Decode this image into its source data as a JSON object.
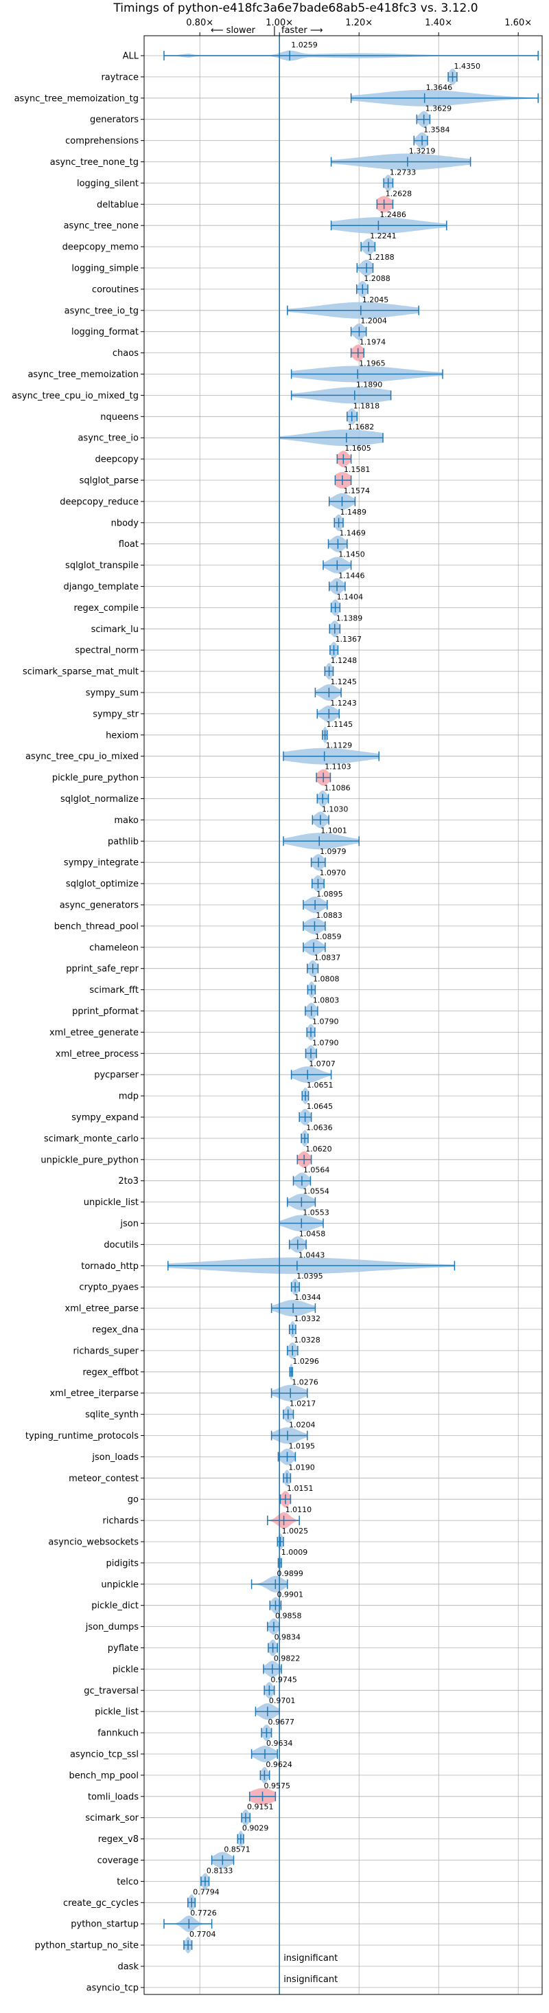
{
  "colors": {
    "line": "#1f77b4",
    "violin_fill": "#a6c8e6",
    "violin_edge": "#1f77b4",
    "significant_fill": "#f4a6ad",
    "grid": "#b0b0b0",
    "background": "#ffffff"
  },
  "chart_data": {
    "type": "violin",
    "orientation": "horizontal",
    "title": "Timings of python-e418fc3a6e7bade68ab5-e418fc3 vs. 3.12.0",
    "direction_label_left": "⟵ slower",
    "direction_separator": "|",
    "direction_label_right": "faster ⟶",
    "xlim": [
      0.66,
      1.66
    ],
    "xticks": [
      0.8,
      1.0,
      1.2,
      1.4,
      1.6
    ],
    "xtick_labels": [
      "0.80×",
      "1.00×",
      "1.20×",
      "1.40×",
      "1.60×"
    ],
    "reference_line": 1.0,
    "grid": true,
    "insignificant_label": "insignificant",
    "benchmarks": [
      {
        "name": "ALL",
        "value": 1.0259,
        "value_label": "1.0259",
        "min": 0.71,
        "max": 1.65,
        "spread": 0.02,
        "kind": "all"
      },
      {
        "name": "raytrace",
        "value": 1.435,
        "value_label": "1.4350",
        "min": 1.424,
        "max": 1.446,
        "spread": 0.009,
        "kind": "normal"
      },
      {
        "name": "async_tree_memoization_tg",
        "value": 1.3646,
        "value_label": "1.3646",
        "min": 1.18,
        "max": 1.65,
        "spread": 0.12,
        "kind": "normal"
      },
      {
        "name": "generators",
        "value": 1.3629,
        "value_label": "1.3629",
        "min": 1.345,
        "max": 1.378,
        "spread": 0.012,
        "kind": "normal"
      },
      {
        "name": "comprehensions",
        "value": 1.3584,
        "value_label": "1.3584",
        "min": 1.338,
        "max": 1.372,
        "spread": 0.012,
        "kind": "normal"
      },
      {
        "name": "async_tree_none_tg",
        "value": 1.3219,
        "value_label": "1.3219",
        "min": 1.13,
        "max": 1.48,
        "spread": 0.11,
        "kind": "normal"
      },
      {
        "name": "logging_silent",
        "value": 1.2733,
        "value_label": "1.2733",
        "min": 1.262,
        "max": 1.285,
        "spread": 0.009,
        "kind": "normal"
      },
      {
        "name": "deltablue",
        "value": 1.2628,
        "value_label": "1.2628",
        "min": 1.245,
        "max": 1.285,
        "spread": 0.018,
        "kind": "significant"
      },
      {
        "name": "async_tree_none",
        "value": 1.2486,
        "value_label": "1.2486",
        "min": 1.13,
        "max": 1.42,
        "spread": 0.1,
        "kind": "normal"
      },
      {
        "name": "deepcopy_memo",
        "value": 1.2241,
        "value_label": "1.2241",
        "min": 1.205,
        "max": 1.24,
        "spread": 0.013,
        "kind": "normal"
      },
      {
        "name": "logging_simple",
        "value": 1.2188,
        "value_label": "1.2188",
        "min": 1.195,
        "max": 1.235,
        "spread": 0.014,
        "kind": "normal"
      },
      {
        "name": "coroutines",
        "value": 1.2088,
        "value_label": "1.2088",
        "min": 1.194,
        "max": 1.222,
        "spread": 0.01,
        "kind": "normal"
      },
      {
        "name": "async_tree_io_tg",
        "value": 1.2045,
        "value_label": "1.2045",
        "min": 1.02,
        "max": 1.35,
        "spread": 0.1,
        "kind": "normal"
      },
      {
        "name": "logging_format",
        "value": 1.2004,
        "value_label": "1.2004",
        "min": 1.18,
        "max": 1.218,
        "spread": 0.013,
        "kind": "normal"
      },
      {
        "name": "chaos",
        "value": 1.1974,
        "value_label": "1.1974",
        "min": 1.18,
        "max": 1.212,
        "spread": 0.013,
        "kind": "significant"
      },
      {
        "name": "async_tree_memoization",
        "value": 1.1965,
        "value_label": "1.1965",
        "min": 1.03,
        "max": 1.41,
        "spread": 0.12,
        "kind": "normal"
      },
      {
        "name": "async_tree_cpu_io_mixed_tg",
        "value": 1.189,
        "value_label": "1.1890",
        "min": 1.03,
        "max": 1.28,
        "spread": 0.09,
        "kind": "normal"
      },
      {
        "name": "nqueens",
        "value": 1.1818,
        "value_label": "1.1818",
        "min": 1.17,
        "max": 1.195,
        "spread": 0.01,
        "kind": "normal"
      },
      {
        "name": "async_tree_io",
        "value": 1.1682,
        "value_label": "1.1682",
        "min": 1.0,
        "max": 1.26,
        "spread": 0.09,
        "kind": "normal"
      },
      {
        "name": "deepcopy",
        "value": 1.1605,
        "value_label": "1.1605",
        "min": 1.145,
        "max": 1.18,
        "spread": 0.013,
        "kind": "significant"
      },
      {
        "name": "sqlglot_parse",
        "value": 1.1581,
        "value_label": "1.1581",
        "min": 1.14,
        "max": 1.18,
        "spread": 0.02,
        "kind": "significant"
      },
      {
        "name": "deepcopy_reduce",
        "value": 1.1574,
        "value_label": "1.1574",
        "min": 1.125,
        "max": 1.19,
        "spread": 0.022,
        "kind": "normal"
      },
      {
        "name": "nbody",
        "value": 1.1489,
        "value_label": "1.1489",
        "min": 1.138,
        "max": 1.16,
        "spread": 0.009,
        "kind": "normal"
      },
      {
        "name": "float",
        "value": 1.1469,
        "value_label": "1.1469",
        "min": 1.123,
        "max": 1.17,
        "spread": 0.016,
        "kind": "normal"
      },
      {
        "name": "sqlglot_transpile",
        "value": 1.145,
        "value_label": "1.1450",
        "min": 1.11,
        "max": 1.18,
        "spread": 0.022,
        "kind": "normal"
      },
      {
        "name": "django_template",
        "value": 1.1446,
        "value_label": "1.1446",
        "min": 1.125,
        "max": 1.165,
        "spread": 0.014,
        "kind": "normal"
      },
      {
        "name": "regex_compile",
        "value": 1.1404,
        "value_label": "1.1404",
        "min": 1.13,
        "max": 1.152,
        "spread": 0.009,
        "kind": "normal"
      },
      {
        "name": "scimark_lu",
        "value": 1.1389,
        "value_label": "1.1389",
        "min": 1.126,
        "max": 1.152,
        "spread": 0.01,
        "kind": "normal"
      },
      {
        "name": "spectral_norm",
        "value": 1.1367,
        "value_label": "1.1367",
        "min": 1.127,
        "max": 1.147,
        "spread": 0.008,
        "kind": "normal"
      },
      {
        "name": "scimark_sparse_mat_mult",
        "value": 1.1248,
        "value_label": "1.1248",
        "min": 1.114,
        "max": 1.135,
        "spread": 0.008,
        "kind": "normal"
      },
      {
        "name": "sympy_sum",
        "value": 1.1245,
        "value_label": "1.1245",
        "min": 1.09,
        "max": 1.155,
        "spread": 0.02,
        "kind": "normal"
      },
      {
        "name": "sympy_str",
        "value": 1.1243,
        "value_label": "1.1243",
        "min": 1.095,
        "max": 1.15,
        "spread": 0.018,
        "kind": "normal"
      },
      {
        "name": "hexiom",
        "value": 1.1145,
        "value_label": "1.1145",
        "min": 1.108,
        "max": 1.12,
        "spread": 0.005,
        "kind": "normal"
      },
      {
        "name": "async_tree_cpu_io_mixed",
        "value": 1.1129,
        "value_label": "1.1129",
        "min": 1.01,
        "max": 1.25,
        "spread": 0.09,
        "kind": "normal"
      },
      {
        "name": "pickle_pure_python",
        "value": 1.1103,
        "value_label": "1.1103",
        "min": 1.093,
        "max": 1.128,
        "spread": 0.014,
        "kind": "significant"
      },
      {
        "name": "sqlglot_normalize",
        "value": 1.1086,
        "value_label": "1.1086",
        "min": 1.095,
        "max": 1.123,
        "spread": 0.01,
        "kind": "normal"
      },
      {
        "name": "mako",
        "value": 1.103,
        "value_label": "1.1030",
        "min": 1.083,
        "max": 1.124,
        "spread": 0.014,
        "kind": "normal"
      },
      {
        "name": "pathlib",
        "value": 1.1001,
        "value_label": "1.1001",
        "min": 1.01,
        "max": 1.2,
        "spread": 0.06,
        "kind": "normal"
      },
      {
        "name": "sympy_integrate",
        "value": 1.0979,
        "value_label": "1.0979",
        "min": 1.08,
        "max": 1.115,
        "spread": 0.013,
        "kind": "normal"
      },
      {
        "name": "sqlglot_optimize",
        "value": 1.097,
        "value_label": "1.0970",
        "min": 1.082,
        "max": 1.112,
        "spread": 0.011,
        "kind": "normal"
      },
      {
        "name": "async_generators",
        "value": 1.0895,
        "value_label": "1.0895",
        "min": 1.06,
        "max": 1.12,
        "spread": 0.02,
        "kind": "normal"
      },
      {
        "name": "bench_thread_pool",
        "value": 1.0883,
        "value_label": "1.0883",
        "min": 1.06,
        "max": 1.115,
        "spread": 0.02,
        "kind": "normal"
      },
      {
        "name": "chameleon",
        "value": 1.0859,
        "value_label": "1.0859",
        "min": 1.06,
        "max": 1.115,
        "spread": 0.018,
        "kind": "normal"
      },
      {
        "name": "pprint_safe_repr",
        "value": 1.0837,
        "value_label": "1.0837",
        "min": 1.07,
        "max": 1.097,
        "spread": 0.01,
        "kind": "normal"
      },
      {
        "name": "scimark_fft",
        "value": 1.0808,
        "value_label": "1.0808",
        "min": 1.071,
        "max": 1.09,
        "spread": 0.007,
        "kind": "normal"
      },
      {
        "name": "pprint_pformat",
        "value": 1.0803,
        "value_label": "1.0803",
        "min": 1.065,
        "max": 1.096,
        "spread": 0.011,
        "kind": "normal"
      },
      {
        "name": "xml_etree_generate",
        "value": 1.079,
        "value_label": "1.0790",
        "min": 1.069,
        "max": 1.089,
        "spread": 0.008,
        "kind": "normal"
      },
      {
        "name": "xml_etree_process",
        "value": 1.079,
        "value_label": "1.0790",
        "min": 1.066,
        "max": 1.093,
        "spread": 0.01,
        "kind": "normal"
      },
      {
        "name": "pycparser",
        "value": 1.0707,
        "value_label": "1.0707",
        "min": 1.03,
        "max": 1.13,
        "spread": 0.03,
        "kind": "normal"
      },
      {
        "name": "mdp",
        "value": 1.0651,
        "value_label": "1.0651",
        "min": 1.057,
        "max": 1.073,
        "spread": 0.007,
        "kind": "normal"
      },
      {
        "name": "sympy_expand",
        "value": 1.0645,
        "value_label": "1.0645",
        "min": 1.05,
        "max": 1.08,
        "spread": 0.011,
        "kind": "normal"
      },
      {
        "name": "scimark_monte_carlo",
        "value": 1.0636,
        "value_label": "1.0636",
        "min": 1.055,
        "max": 1.072,
        "spread": 0.007,
        "kind": "normal"
      },
      {
        "name": "unpickle_pure_python",
        "value": 1.062,
        "value_label": "1.0620",
        "min": 1.045,
        "max": 1.08,
        "spread": 0.013,
        "kind": "significant"
      },
      {
        "name": "2to3",
        "value": 1.0564,
        "value_label": "1.0564",
        "min": 1.035,
        "max": 1.078,
        "spread": 0.015,
        "kind": "normal"
      },
      {
        "name": "unpickle_list",
        "value": 1.0554,
        "value_label": "1.0554",
        "min": 1.02,
        "max": 1.09,
        "spread": 0.024,
        "kind": "normal"
      },
      {
        "name": "json",
        "value": 1.0553,
        "value_label": "1.0553",
        "min": 1.0,
        "max": 1.11,
        "spread": 0.035,
        "kind": "normal"
      },
      {
        "name": "docutils",
        "value": 1.0458,
        "value_label": "1.0458",
        "min": 1.025,
        "max": 1.067,
        "spread": 0.015,
        "kind": "normal"
      },
      {
        "name": "tornado_http",
        "value": 1.0443,
        "value_label": "1.0443",
        "min": 0.72,
        "max": 1.44,
        "spread": 0.2,
        "kind": "normal"
      },
      {
        "name": "crypto_pyaes",
        "value": 1.0395,
        "value_label": "1.0395",
        "min": 1.03,
        "max": 1.05,
        "spread": 0.008,
        "kind": "normal"
      },
      {
        "name": "xml_etree_parse",
        "value": 1.0344,
        "value_label": "1.0344",
        "min": 0.98,
        "max": 1.09,
        "spread": 0.035,
        "kind": "normal"
      },
      {
        "name": "regex_dna",
        "value": 1.0332,
        "value_label": "1.0332",
        "min": 1.025,
        "max": 1.041,
        "spread": 0.006,
        "kind": "normal"
      },
      {
        "name": "richards_super",
        "value": 1.0328,
        "value_label": "1.0328",
        "min": 1.02,
        "max": 1.046,
        "spread": 0.01,
        "kind": "normal"
      },
      {
        "name": "regex_effbot",
        "value": 1.0296,
        "value_label": "1.0296",
        "min": 1.026,
        "max": 1.033,
        "spread": 0.004,
        "kind": "normal"
      },
      {
        "name": "xml_etree_iterparse",
        "value": 1.0276,
        "value_label": "1.0276",
        "min": 0.98,
        "max": 1.07,
        "spread": 0.03,
        "kind": "normal"
      },
      {
        "name": "sqlite_synth",
        "value": 1.0217,
        "value_label": "1.0217",
        "min": 1.01,
        "max": 1.035,
        "spread": 0.009,
        "kind": "normal"
      },
      {
        "name": "typing_runtime_protocols",
        "value": 1.0204,
        "value_label": "1.0204",
        "min": 0.98,
        "max": 1.07,
        "spread": 0.028,
        "kind": "normal"
      },
      {
        "name": "json_loads",
        "value": 1.0195,
        "value_label": "1.0195",
        "min": 0.997,
        "max": 1.04,
        "spread": 0.015,
        "kind": "normal"
      },
      {
        "name": "meteor_contest",
        "value": 1.019,
        "value_label": "1.0190",
        "min": 1.01,
        "max": 1.028,
        "spread": 0.007,
        "kind": "normal"
      },
      {
        "name": "go",
        "value": 1.0151,
        "value_label": "1.0151",
        "min": 1.002,
        "max": 1.028,
        "spread": 0.01,
        "kind": "significant"
      },
      {
        "name": "richards",
        "value": 1.011,
        "value_label": "1.0110",
        "min": 0.97,
        "max": 1.05,
        "spread": 0.015,
        "kind": "significant"
      },
      {
        "name": "asyncio_websockets",
        "value": 1.0025,
        "value_label": "1.0025",
        "min": 0.995,
        "max": 1.01,
        "spread": 0.006,
        "kind": "normal"
      },
      {
        "name": "pidigits",
        "value": 1.0009,
        "value_label": "1.0009",
        "min": 0.997,
        "max": 1.005,
        "spread": 0.003,
        "kind": "normal"
      },
      {
        "name": "unpickle",
        "value": 0.9899,
        "value_label": "0.9899",
        "min": 0.93,
        "max": 1.02,
        "spread": 0.02,
        "kind": "normal"
      },
      {
        "name": "pickle_dict",
        "value": 0.9901,
        "value_label": "0.9901",
        "min": 0.976,
        "max": 1.004,
        "spread": 0.01,
        "kind": "normal"
      },
      {
        "name": "json_dumps",
        "value": 0.9858,
        "value_label": "0.9858",
        "min": 0.97,
        "max": 1.0,
        "spread": 0.011,
        "kind": "normal"
      },
      {
        "name": "pyflate",
        "value": 0.9834,
        "value_label": "0.9834",
        "min": 0.972,
        "max": 0.995,
        "spread": 0.009,
        "kind": "normal"
      },
      {
        "name": "pickle",
        "value": 0.9822,
        "value_label": "0.9822",
        "min": 0.96,
        "max": 1.005,
        "spread": 0.015,
        "kind": "normal"
      },
      {
        "name": "gc_traversal",
        "value": 0.9745,
        "value_label": "0.9745",
        "min": 0.962,
        "max": 0.987,
        "spread": 0.009,
        "kind": "normal"
      },
      {
        "name": "pickle_list",
        "value": 0.9701,
        "value_label": "0.9701",
        "min": 0.94,
        "max": 1.0,
        "spread": 0.02,
        "kind": "normal"
      },
      {
        "name": "fannkuch",
        "value": 0.9677,
        "value_label": "0.9677",
        "min": 0.955,
        "max": 0.98,
        "spread": 0.009,
        "kind": "normal"
      },
      {
        "name": "asyncio_tcp_ssl",
        "value": 0.9634,
        "value_label": "0.9634",
        "min": 0.93,
        "max": 0.995,
        "spread": 0.022,
        "kind": "normal"
      },
      {
        "name": "bench_mp_pool",
        "value": 0.9624,
        "value_label": "0.9624",
        "min": 0.952,
        "max": 0.975,
        "spread": 0.008,
        "kind": "normal"
      },
      {
        "name": "tomli_loads",
        "value": 0.9575,
        "value_label": "0.9575",
        "min": 0.925,
        "max": 0.99,
        "spread": 0.03,
        "kind": "significant"
      },
      {
        "name": "scimark_sor",
        "value": 0.9151,
        "value_label": "0.9151",
        "min": 0.905,
        "max": 0.926,
        "spread": 0.008,
        "kind": "normal"
      },
      {
        "name": "regex_v8",
        "value": 0.9029,
        "value_label": "0.9029",
        "min": 0.895,
        "max": 0.91,
        "spread": 0.006,
        "kind": "normal"
      },
      {
        "name": "coverage",
        "value": 0.8571,
        "value_label": "0.8571",
        "min": 0.83,
        "max": 0.885,
        "spread": 0.02,
        "kind": "normal"
      },
      {
        "name": "telco",
        "value": 0.8133,
        "value_label": "0.8133",
        "min": 0.803,
        "max": 0.823,
        "spread": 0.008,
        "kind": "normal"
      },
      {
        "name": "create_gc_cycles",
        "value": 0.7794,
        "value_label": "0.7794",
        "min": 0.77,
        "max": 0.788,
        "spread": 0.007,
        "kind": "normal"
      },
      {
        "name": "python_startup",
        "value": 0.7726,
        "value_label": "0.7726",
        "min": 0.71,
        "max": 0.83,
        "spread": 0.015,
        "kind": "normal"
      },
      {
        "name": "python_startup_no_site",
        "value": 0.7704,
        "value_label": "0.7704",
        "min": 0.76,
        "max": 0.78,
        "spread": 0.007,
        "kind": "normal"
      },
      {
        "name": "dask",
        "kind": "insignificant"
      },
      {
        "name": "asyncio_tcp",
        "kind": "insignificant"
      }
    ]
  }
}
